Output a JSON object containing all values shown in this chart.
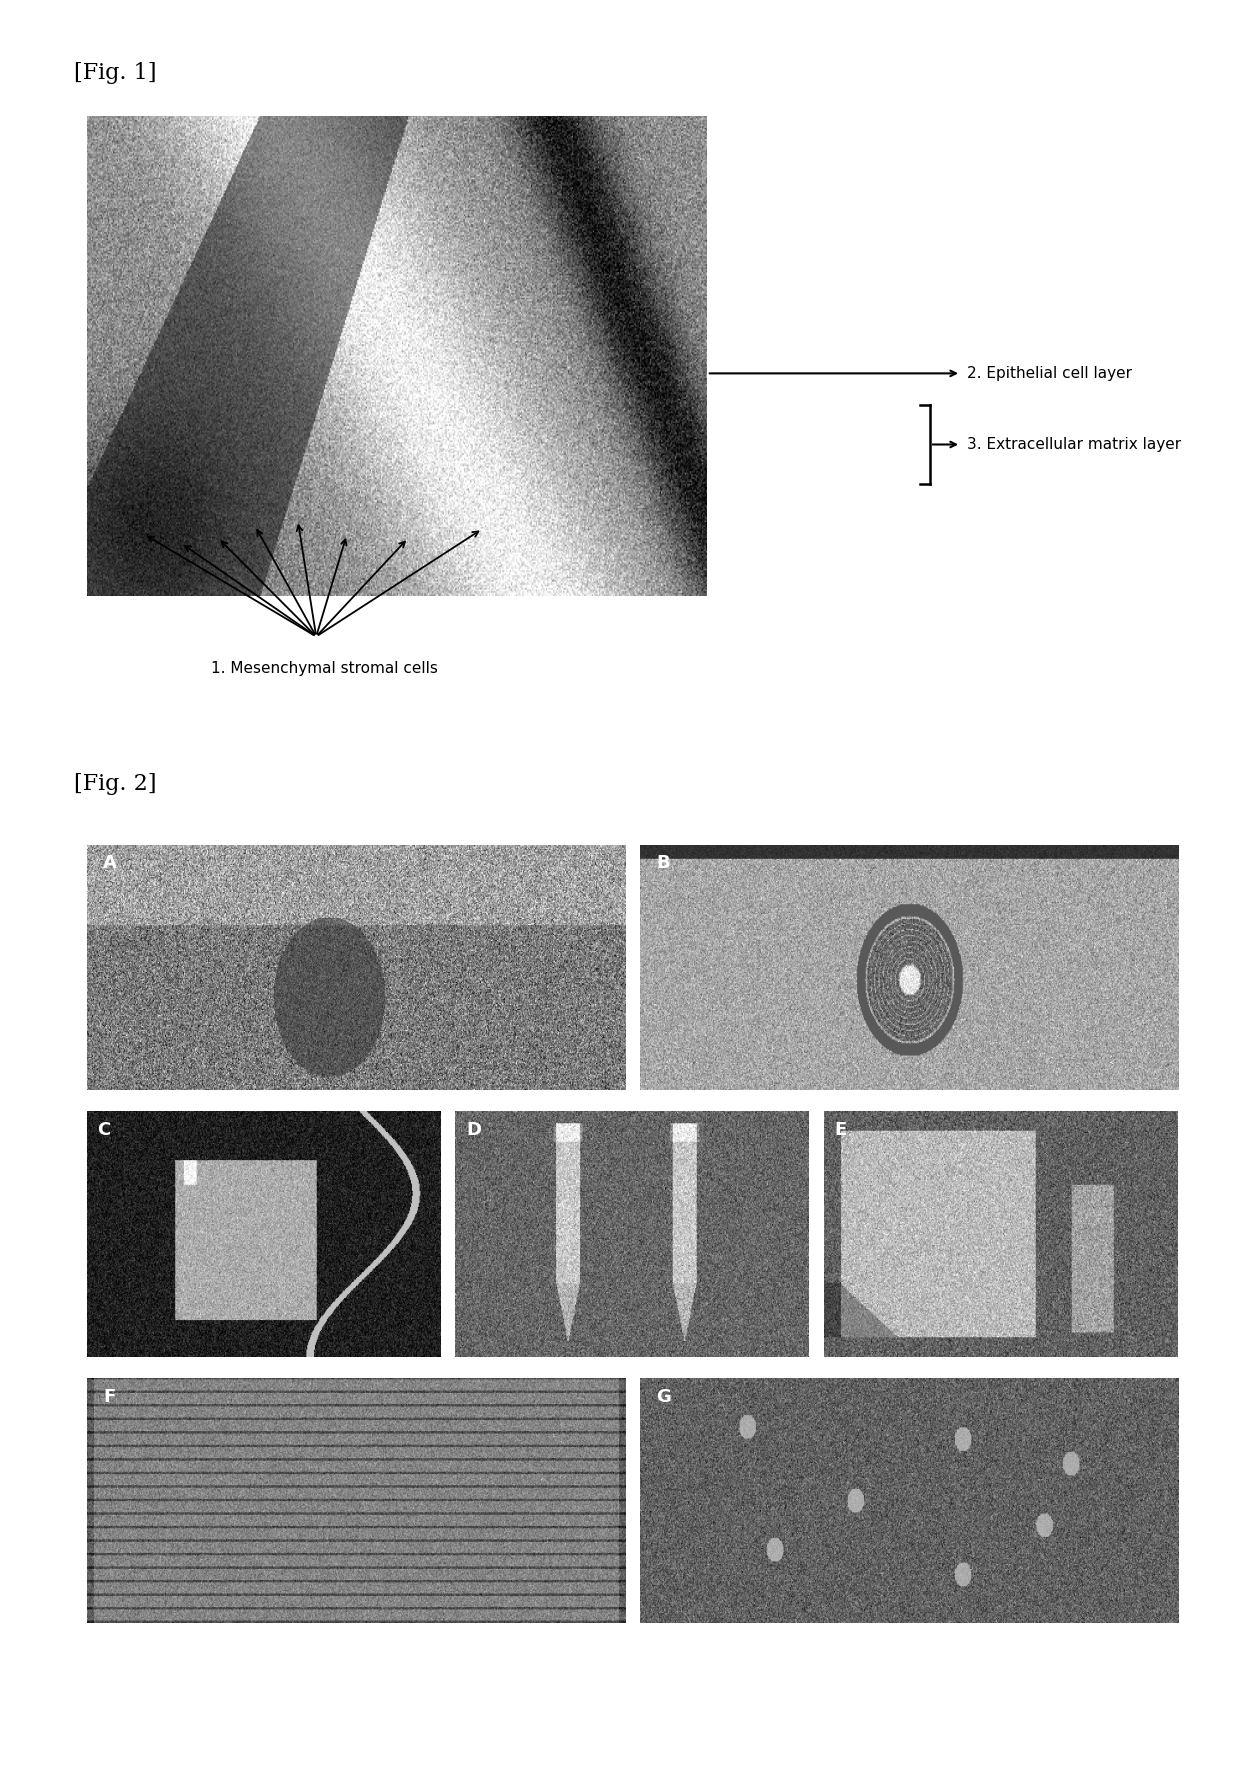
{
  "fig1_label": "[Fig. 1]",
  "fig2_label": "[Fig. 2]",
  "fig1_annotation1": "2. Epithelial cell layer",
  "fig1_annotation2": "3. Extracellular matrix layer",
  "fig1_annotation3": "1. Mesenchymal stromal cells",
  "panel_labels": [
    "A",
    "B",
    "C",
    "D",
    "E",
    "F",
    "G"
  ],
  "background_color": "#ffffff",
  "text_color": "#000000"
}
